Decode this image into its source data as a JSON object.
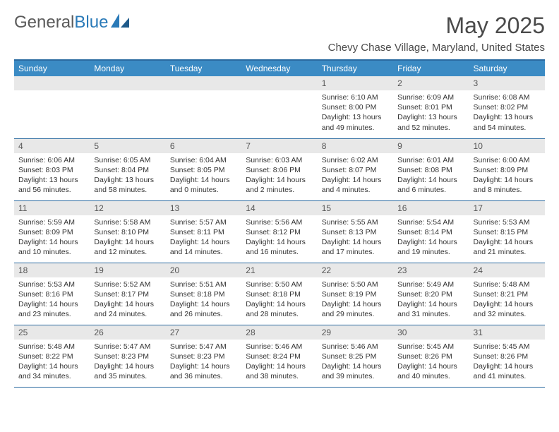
{
  "logo": {
    "text1": "General",
    "text2": "Blue"
  },
  "title": "May 2025",
  "location": "Chevy Chase Village, Maryland, United States",
  "colors": {
    "header_bg": "#3b8bc4",
    "header_text": "#ffffff",
    "rule": "#2a6aa0",
    "daynum_bg": "#e8e8e8",
    "logo_blue": "#2a7ab8"
  },
  "day_headers": [
    "Sunday",
    "Monday",
    "Tuesday",
    "Wednesday",
    "Thursday",
    "Friday",
    "Saturday"
  ],
  "weeks": [
    [
      {
        "n": "",
        "lines": []
      },
      {
        "n": "",
        "lines": []
      },
      {
        "n": "",
        "lines": []
      },
      {
        "n": "",
        "lines": []
      },
      {
        "n": "1",
        "lines": [
          "Sunrise: 6:10 AM",
          "Sunset: 8:00 PM",
          "Daylight: 13 hours and 49 minutes."
        ]
      },
      {
        "n": "2",
        "lines": [
          "Sunrise: 6:09 AM",
          "Sunset: 8:01 PM",
          "Daylight: 13 hours and 52 minutes."
        ]
      },
      {
        "n": "3",
        "lines": [
          "Sunrise: 6:08 AM",
          "Sunset: 8:02 PM",
          "Daylight: 13 hours and 54 minutes."
        ]
      }
    ],
    [
      {
        "n": "4",
        "lines": [
          "Sunrise: 6:06 AM",
          "Sunset: 8:03 PM",
          "Daylight: 13 hours and 56 minutes."
        ]
      },
      {
        "n": "5",
        "lines": [
          "Sunrise: 6:05 AM",
          "Sunset: 8:04 PM",
          "Daylight: 13 hours and 58 minutes."
        ]
      },
      {
        "n": "6",
        "lines": [
          "Sunrise: 6:04 AM",
          "Sunset: 8:05 PM",
          "Daylight: 14 hours and 0 minutes."
        ]
      },
      {
        "n": "7",
        "lines": [
          "Sunrise: 6:03 AM",
          "Sunset: 8:06 PM",
          "Daylight: 14 hours and 2 minutes."
        ]
      },
      {
        "n": "8",
        "lines": [
          "Sunrise: 6:02 AM",
          "Sunset: 8:07 PM",
          "Daylight: 14 hours and 4 minutes."
        ]
      },
      {
        "n": "9",
        "lines": [
          "Sunrise: 6:01 AM",
          "Sunset: 8:08 PM",
          "Daylight: 14 hours and 6 minutes."
        ]
      },
      {
        "n": "10",
        "lines": [
          "Sunrise: 6:00 AM",
          "Sunset: 8:09 PM",
          "Daylight: 14 hours and 8 minutes."
        ]
      }
    ],
    [
      {
        "n": "11",
        "lines": [
          "Sunrise: 5:59 AM",
          "Sunset: 8:09 PM",
          "Daylight: 14 hours and 10 minutes."
        ]
      },
      {
        "n": "12",
        "lines": [
          "Sunrise: 5:58 AM",
          "Sunset: 8:10 PM",
          "Daylight: 14 hours and 12 minutes."
        ]
      },
      {
        "n": "13",
        "lines": [
          "Sunrise: 5:57 AM",
          "Sunset: 8:11 PM",
          "Daylight: 14 hours and 14 minutes."
        ]
      },
      {
        "n": "14",
        "lines": [
          "Sunrise: 5:56 AM",
          "Sunset: 8:12 PM",
          "Daylight: 14 hours and 16 minutes."
        ]
      },
      {
        "n": "15",
        "lines": [
          "Sunrise: 5:55 AM",
          "Sunset: 8:13 PM",
          "Daylight: 14 hours and 17 minutes."
        ]
      },
      {
        "n": "16",
        "lines": [
          "Sunrise: 5:54 AM",
          "Sunset: 8:14 PM",
          "Daylight: 14 hours and 19 minutes."
        ]
      },
      {
        "n": "17",
        "lines": [
          "Sunrise: 5:53 AM",
          "Sunset: 8:15 PM",
          "Daylight: 14 hours and 21 minutes."
        ]
      }
    ],
    [
      {
        "n": "18",
        "lines": [
          "Sunrise: 5:53 AM",
          "Sunset: 8:16 PM",
          "Daylight: 14 hours and 23 minutes."
        ]
      },
      {
        "n": "19",
        "lines": [
          "Sunrise: 5:52 AM",
          "Sunset: 8:17 PM",
          "Daylight: 14 hours and 24 minutes."
        ]
      },
      {
        "n": "20",
        "lines": [
          "Sunrise: 5:51 AM",
          "Sunset: 8:18 PM",
          "Daylight: 14 hours and 26 minutes."
        ]
      },
      {
        "n": "21",
        "lines": [
          "Sunrise: 5:50 AM",
          "Sunset: 8:18 PM",
          "Daylight: 14 hours and 28 minutes."
        ]
      },
      {
        "n": "22",
        "lines": [
          "Sunrise: 5:50 AM",
          "Sunset: 8:19 PM",
          "Daylight: 14 hours and 29 minutes."
        ]
      },
      {
        "n": "23",
        "lines": [
          "Sunrise: 5:49 AM",
          "Sunset: 8:20 PM",
          "Daylight: 14 hours and 31 minutes."
        ]
      },
      {
        "n": "24",
        "lines": [
          "Sunrise: 5:48 AM",
          "Sunset: 8:21 PM",
          "Daylight: 14 hours and 32 minutes."
        ]
      }
    ],
    [
      {
        "n": "25",
        "lines": [
          "Sunrise: 5:48 AM",
          "Sunset: 8:22 PM",
          "Daylight: 14 hours and 34 minutes."
        ]
      },
      {
        "n": "26",
        "lines": [
          "Sunrise: 5:47 AM",
          "Sunset: 8:23 PM",
          "Daylight: 14 hours and 35 minutes."
        ]
      },
      {
        "n": "27",
        "lines": [
          "Sunrise: 5:47 AM",
          "Sunset: 8:23 PM",
          "Daylight: 14 hours and 36 minutes."
        ]
      },
      {
        "n": "28",
        "lines": [
          "Sunrise: 5:46 AM",
          "Sunset: 8:24 PM",
          "Daylight: 14 hours and 38 minutes."
        ]
      },
      {
        "n": "29",
        "lines": [
          "Sunrise: 5:46 AM",
          "Sunset: 8:25 PM",
          "Daylight: 14 hours and 39 minutes."
        ]
      },
      {
        "n": "30",
        "lines": [
          "Sunrise: 5:45 AM",
          "Sunset: 8:26 PM",
          "Daylight: 14 hours and 40 minutes."
        ]
      },
      {
        "n": "31",
        "lines": [
          "Sunrise: 5:45 AM",
          "Sunset: 8:26 PM",
          "Daylight: 14 hours and 41 minutes."
        ]
      }
    ]
  ]
}
